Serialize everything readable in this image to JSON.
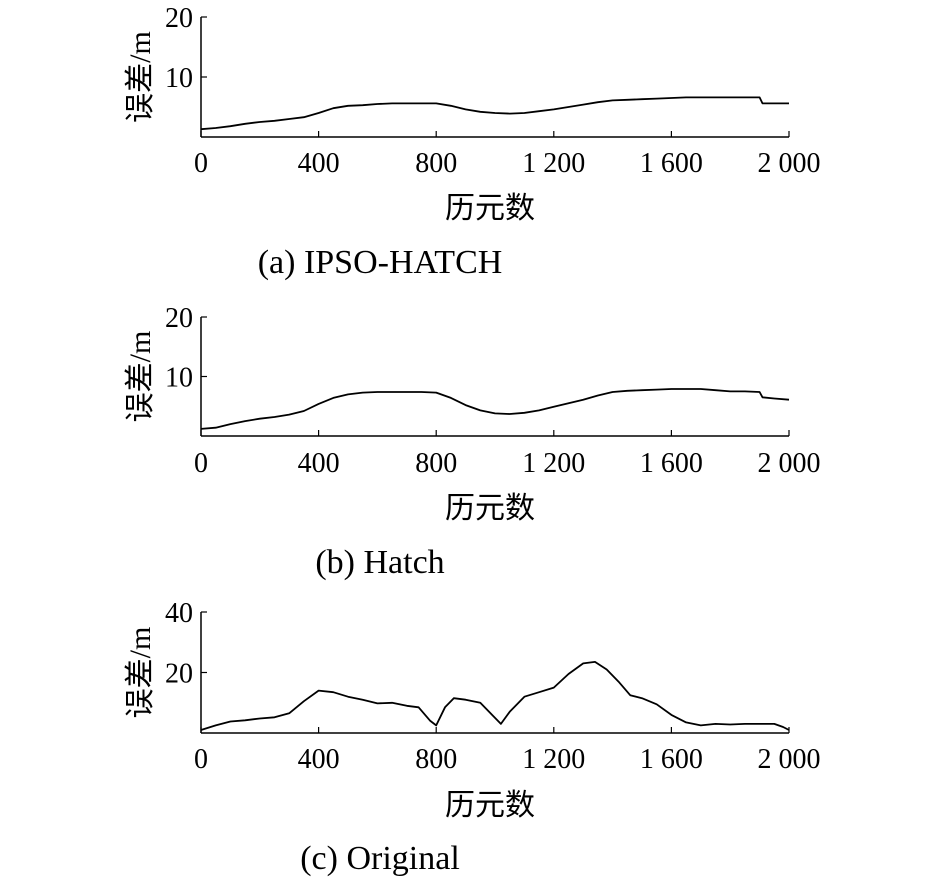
{
  "chart_data": [
    {
      "type": "line",
      "caption": "(a) IPSO-HATCH",
      "xlabel": "历元数",
      "ylabel": "误差/m",
      "xlim": [
        0,
        2000
      ],
      "ylim": [
        0,
        20
      ],
      "xticks": [
        0,
        400,
        800,
        1200,
        1600,
        2000
      ],
      "xtick_labels": [
        "0",
        "400",
        "800",
        "1 200",
        "1 600",
        "2 000"
      ],
      "yticks": [
        10,
        20
      ],
      "ytick_labels": [
        "10",
        "20"
      ],
      "series": [
        {
          "x": [
            0,
            50,
            100,
            150,
            200,
            250,
            300,
            350,
            400,
            450,
            500,
            550,
            600,
            650,
            700,
            750,
            800,
            850,
            900,
            950,
            1000,
            1050,
            1100,
            1150,
            1200,
            1250,
            1300,
            1350,
            1400,
            1450,
            1500,
            1550,
            1600,
            1650,
            1700,
            1750,
            1800,
            1850,
            1900,
            1910,
            1950,
            2000
          ],
          "y": [
            1.3,
            1.5,
            1.8,
            2.2,
            2.5,
            2.7,
            3.0,
            3.3,
            4.0,
            4.8,
            5.2,
            5.3,
            5.5,
            5.6,
            5.6,
            5.6,
            5.6,
            5.2,
            4.6,
            4.2,
            4.0,
            3.9,
            4.0,
            4.3,
            4.6,
            5.0,
            5.4,
            5.8,
            6.1,
            6.2,
            6.3,
            6.4,
            6.5,
            6.6,
            6.6,
            6.6,
            6.6,
            6.6,
            6.6,
            5.6,
            5.6,
            5.6
          ]
        }
      ]
    },
    {
      "type": "line",
      "caption": "(b) Hatch",
      "xlabel": "历元数",
      "ylabel": "误差/m",
      "xlim": [
        0,
        2000
      ],
      "ylim": [
        0,
        20
      ],
      "xticks": [
        0,
        400,
        800,
        1200,
        1600,
        2000
      ],
      "xtick_labels": [
        "0",
        "400",
        "800",
        "1 200",
        "1 600",
        "2 000"
      ],
      "yticks": [
        10,
        20
      ],
      "ytick_labels": [
        "10",
        "20"
      ],
      "series": [
        {
          "x": [
            0,
            50,
            100,
            150,
            200,
            250,
            300,
            350,
            400,
            450,
            500,
            550,
            600,
            650,
            700,
            750,
            800,
            850,
            900,
            950,
            1000,
            1050,
            1100,
            1150,
            1200,
            1250,
            1300,
            1350,
            1400,
            1450,
            1500,
            1550,
            1600,
            1650,
            1700,
            1750,
            1800,
            1850,
            1900,
            1910,
            1950,
            2000
          ],
          "y": [
            1.2,
            1.4,
            2.0,
            2.5,
            2.9,
            3.2,
            3.6,
            4.2,
            5.4,
            6.4,
            7.0,
            7.3,
            7.4,
            7.4,
            7.4,
            7.4,
            7.3,
            6.4,
            5.2,
            4.3,
            3.8,
            3.7,
            3.9,
            4.3,
            4.9,
            5.5,
            6.1,
            6.8,
            7.4,
            7.6,
            7.7,
            7.8,
            7.9,
            7.9,
            7.9,
            7.7,
            7.5,
            7.5,
            7.4,
            6.5,
            6.3,
            6.1
          ]
        }
      ]
    },
    {
      "type": "line",
      "caption": "(c) Original",
      "xlabel": "历元数",
      "ylabel": "误差/m",
      "xlim": [
        0,
        2000
      ],
      "ylim": [
        0,
        40
      ],
      "xticks": [
        0,
        400,
        800,
        1200,
        1600,
        2000
      ],
      "xtick_labels": [
        "0",
        "400",
        "800",
        "1 200",
        "1 600",
        "2 000"
      ],
      "yticks": [
        20,
        40
      ],
      "ytick_labels": [
        "20",
        "40"
      ],
      "series": [
        {
          "x": [
            0,
            50,
            100,
            150,
            200,
            250,
            300,
            350,
            400,
            450,
            500,
            550,
            600,
            650,
            700,
            740,
            780,
            800,
            830,
            860,
            900,
            950,
            990,
            1020,
            1050,
            1100,
            1150,
            1200,
            1250,
            1300,
            1340,
            1380,
            1420,
            1460,
            1500,
            1550,
            1600,
            1650,
            1700,
            1750,
            1800,
            1850,
            1900,
            1950,
            1980,
            2000
          ],
          "y": [
            1.0,
            2.5,
            3.8,
            4.2,
            4.8,
            5.2,
            6.5,
            10.5,
            14.0,
            13.5,
            12.0,
            11.0,
            9.8,
            10.0,
            9.0,
            8.5,
            4.0,
            2.5,
            8.5,
            11.5,
            11.0,
            10.0,
            6.0,
            3.0,
            7.0,
            12.0,
            13.5,
            15.0,
            19.5,
            23.0,
            23.5,
            21.0,
            17.0,
            12.5,
            11.5,
            9.5,
            6.0,
            3.5,
            2.5,
            3.0,
            2.8,
            3.0,
            3.0,
            3.0,
            2.0,
            1.0
          ]
        }
      ]
    }
  ]
}
